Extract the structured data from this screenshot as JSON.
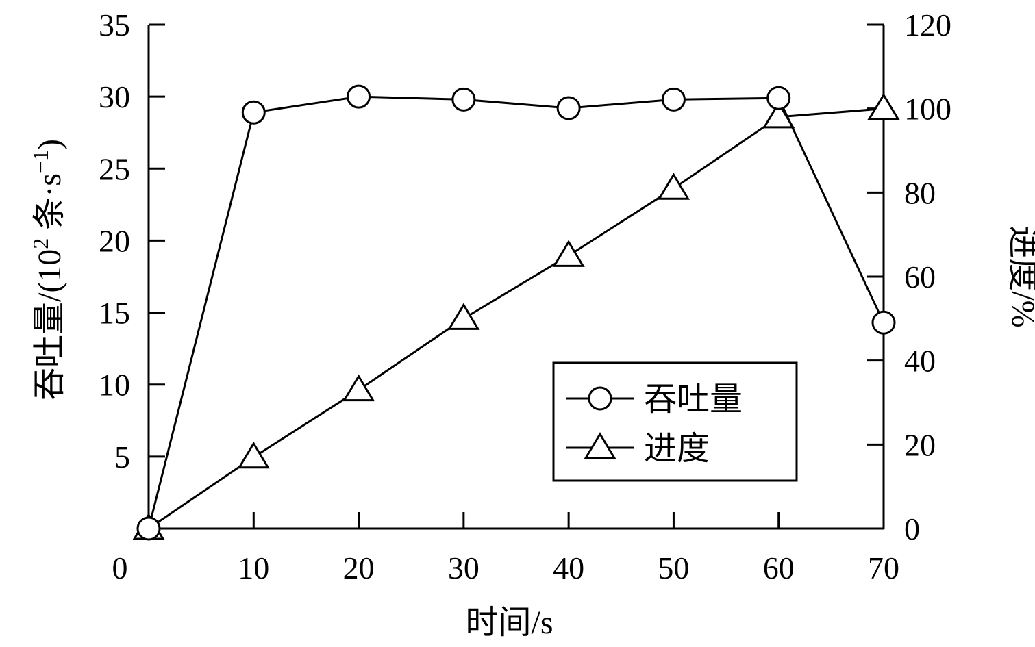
{
  "chart_data": {
    "type": "line",
    "x": [
      0,
      10,
      20,
      30,
      40,
      50,
      60,
      70
    ],
    "xlabel": "时间/s",
    "xlim": [
      0,
      70
    ],
    "x_ticks": [
      0,
      10,
      20,
      30,
      40,
      50,
      60,
      70
    ],
    "y_left": {
      "label_parts": [
        "吞吐量/(10",
        "2",
        " 条·s",
        "−1",
        ")"
      ],
      "lim": [
        0,
        35
      ],
      "ticks": [
        5,
        10,
        15,
        20,
        25,
        30,
        35
      ]
    },
    "y_right": {
      "label": "进度/%",
      "lim": [
        0,
        120
      ],
      "ticks": [
        0,
        20,
        40,
        60,
        80,
        100,
        120
      ]
    },
    "series": [
      {
        "name": "吞吐量",
        "axis": "left",
        "marker": "circle",
        "values": [
          0,
          28.9,
          30.0,
          29.8,
          29.2,
          29.8,
          29.9,
          14.3
        ]
      },
      {
        "name": "进度",
        "axis": "right",
        "marker": "triangle",
        "values": [
          0,
          17,
          33,
          50,
          65,
          81,
          98,
          100
        ]
      }
    ],
    "legend": {
      "position": "lower-right"
    },
    "grid": false,
    "colors": {
      "line": "#000000",
      "background": "#ffffff"
    }
  }
}
